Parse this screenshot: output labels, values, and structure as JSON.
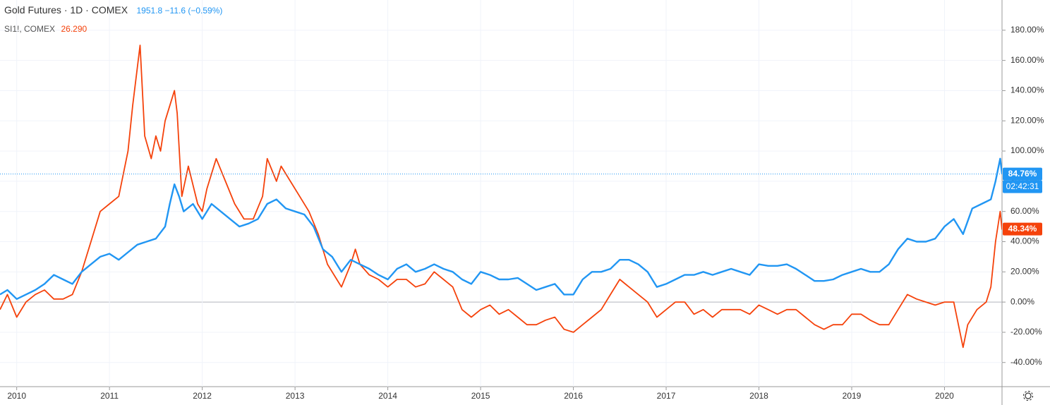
{
  "chart_data": {
    "type": "line",
    "countdown": "02:42:31",
    "xlim": [
      2009.82,
      2020.62
    ],
    "xticks": [
      2010,
      2011,
      2012,
      2013,
      2014,
      2015,
      2016,
      2017,
      2018,
      2019,
      2020
    ],
    "ylim": [
      -56,
      200
    ],
    "yticks": [
      {
        "value": -40,
        "label": "-40.00%"
      },
      {
        "value": -20,
        "label": "-20.00%"
      },
      {
        "value": 0,
        "label": "0.00%"
      },
      {
        "value": 20,
        "label": "20.00%"
      },
      {
        "value": 40,
        "label": "40.00%"
      },
      {
        "value": 60,
        "label": "60.00%"
      },
      {
        "value": 80,
        "label": "80.00%"
      },
      {
        "value": 100,
        "label": "100.00%"
      },
      {
        "value": 120,
        "label": "120.00%"
      },
      {
        "value": 140,
        "label": "140.00%"
      },
      {
        "value": 160,
        "label": "160.00%"
      },
      {
        "value": 180,
        "label": "180.00%"
      }
    ],
    "grid": true,
    "series": [
      {
        "name": "Gold Futures · 1D · COMEX",
        "quote": "1951.8  −11.6 (−0.59%)",
        "color": "#2196f3",
        "last_value": {
          "value": 84.76,
          "label": "84.76%"
        },
        "x": [
          2009.82,
          2009.9,
          2010.0,
          2010.1,
          2010.2,
          2010.3,
          2010.4,
          2010.5,
          2010.6,
          2010.7,
          2010.8,
          2010.9,
          2011.0,
          2011.1,
          2011.2,
          2011.3,
          2011.4,
          2011.5,
          2011.6,
          2011.65,
          2011.7,
          2011.75,
          2011.8,
          2011.9,
          2012.0,
          2012.1,
          2012.2,
          2012.3,
          2012.4,
          2012.5,
          2012.6,
          2012.7,
          2012.8,
          2012.9,
          2013.0,
          2013.1,
          2013.2,
          2013.3,
          2013.4,
          2013.5,
          2013.6,
          2013.7,
          2013.8,
          2013.9,
          2014.0,
          2014.1,
          2014.2,
          2014.3,
          2014.4,
          2014.5,
          2014.6,
          2014.7,
          2014.8,
          2014.9,
          2015.0,
          2015.1,
          2015.2,
          2015.3,
          2015.4,
          2015.5,
          2015.6,
          2015.7,
          2015.8,
          2015.9,
          2016.0,
          2016.1,
          2016.2,
          2016.3,
          2016.4,
          2016.5,
          2016.6,
          2016.7,
          2016.8,
          2016.9,
          2017.0,
          2017.1,
          2017.2,
          2017.3,
          2017.4,
          2017.5,
          2017.6,
          2017.7,
          2017.8,
          2017.9,
          2018.0,
          2018.1,
          2018.2,
          2018.3,
          2018.4,
          2018.5,
          2018.6,
          2018.7,
          2018.8,
          2018.9,
          2019.0,
          2019.1,
          2019.2,
          2019.3,
          2019.4,
          2019.5,
          2019.6,
          2019.7,
          2019.8,
          2019.9,
          2020.0,
          2020.1,
          2020.2,
          2020.3,
          2020.4,
          2020.5,
          2020.55,
          2020.6,
          2020.62
        ],
        "values": [
          5,
          8,
          2,
          5,
          8,
          12,
          18,
          15,
          12,
          20,
          25,
          30,
          32,
          28,
          33,
          38,
          40,
          42,
          50,
          65,
          78,
          70,
          60,
          65,
          55,
          65,
          60,
          55,
          50,
          52,
          55,
          65,
          68,
          62,
          60,
          58,
          50,
          35,
          30,
          20,
          28,
          25,
          22,
          18,
          15,
          22,
          25,
          20,
          22,
          25,
          22,
          20,
          15,
          12,
          20,
          18,
          15,
          15,
          16,
          12,
          8,
          10,
          12,
          5,
          5,
          15,
          20,
          20,
          22,
          28,
          28,
          25,
          20,
          10,
          12,
          15,
          18,
          18,
          20,
          18,
          20,
          22,
          20,
          18,
          25,
          24,
          24,
          25,
          22,
          18,
          14,
          14,
          15,
          18,
          20,
          22,
          20,
          20,
          25,
          35,
          42,
          40,
          40,
          42,
          50,
          55,
          45,
          62,
          65,
          68,
          80,
          95,
          85
        ]
      },
      {
        "name": "SI1!, COMEX",
        "quote": "26.290",
        "color": "#f5420b",
        "last_value": {
          "value": 48.34,
          "label": "48.34%"
        },
        "x": [
          2009.82,
          2009.9,
          2010.0,
          2010.1,
          2010.2,
          2010.3,
          2010.4,
          2010.5,
          2010.6,
          2010.7,
          2010.8,
          2010.9,
          2011.0,
          2011.1,
          2011.2,
          2011.25,
          2011.33,
          2011.38,
          2011.45,
          2011.5,
          2011.55,
          2011.6,
          2011.65,
          2011.7,
          2011.73,
          2011.78,
          2011.85,
          2011.95,
          2012.0,
          2012.05,
          2012.15,
          2012.25,
          2012.35,
          2012.45,
          2012.55,
          2012.65,
          2012.7,
          2012.8,
          2012.85,
          2012.95,
          2013.05,
          2013.15,
          2013.25,
          2013.35,
          2013.45,
          2013.5,
          2013.6,
          2013.65,
          2013.7,
          2013.8,
          2013.9,
          2014.0,
          2014.1,
          2014.2,
          2014.3,
          2014.4,
          2014.5,
          2014.6,
          2014.7,
          2014.8,
          2014.9,
          2015.0,
          2015.1,
          2015.2,
          2015.3,
          2015.4,
          2015.5,
          2015.6,
          2015.7,
          2015.8,
          2015.9,
          2016.0,
          2016.1,
          2016.2,
          2016.3,
          2016.4,
          2016.5,
          2016.6,
          2016.7,
          2016.8,
          2016.9,
          2017.0,
          2017.1,
          2017.2,
          2017.3,
          2017.4,
          2017.5,
          2017.6,
          2017.7,
          2017.8,
          2017.9,
          2018.0,
          2018.1,
          2018.2,
          2018.3,
          2018.4,
          2018.5,
          2018.6,
          2018.7,
          2018.8,
          2018.9,
          2019.0,
          2019.1,
          2019.2,
          2019.3,
          2019.4,
          2019.5,
          2019.6,
          2019.7,
          2019.8,
          2019.9,
          2020.0,
          2020.1,
          2020.2,
          2020.25,
          2020.35,
          2020.45,
          2020.5,
          2020.55,
          2020.6,
          2020.62
        ],
        "values": [
          -5,
          5,
          -10,
          0,
          5,
          8,
          2,
          2,
          5,
          20,
          40,
          60,
          65,
          70,
          100,
          130,
          170,
          110,
          95,
          110,
          100,
          120,
          130,
          140,
          125,
          70,
          90,
          65,
          60,
          75,
          95,
          80,
          65,
          55,
          55,
          70,
          95,
          80,
          90,
          80,
          70,
          60,
          45,
          25,
          15,
          10,
          25,
          35,
          25,
          18,
          15,
          10,
          15,
          15,
          10,
          12,
          20,
          15,
          10,
          -5,
          -10,
          -5,
          -2,
          -8,
          -5,
          -10,
          -15,
          -15,
          -12,
          -10,
          -18,
          -20,
          -15,
          -10,
          -5,
          5,
          15,
          10,
          5,
          0,
          -10,
          -5,
          0,
          0,
          -8,
          -5,
          -10,
          -5,
          -5,
          -5,
          -8,
          -2,
          -5,
          -8,
          -5,
          -5,
          -10,
          -15,
          -18,
          -15,
          -15,
          -8,
          -8,
          -12,
          -15,
          -15,
          -5,
          5,
          2,
          0,
          -2,
          0,
          0,
          -30,
          -15,
          -5,
          0,
          10,
          40,
          60,
          48
        ]
      }
    ]
  }
}
